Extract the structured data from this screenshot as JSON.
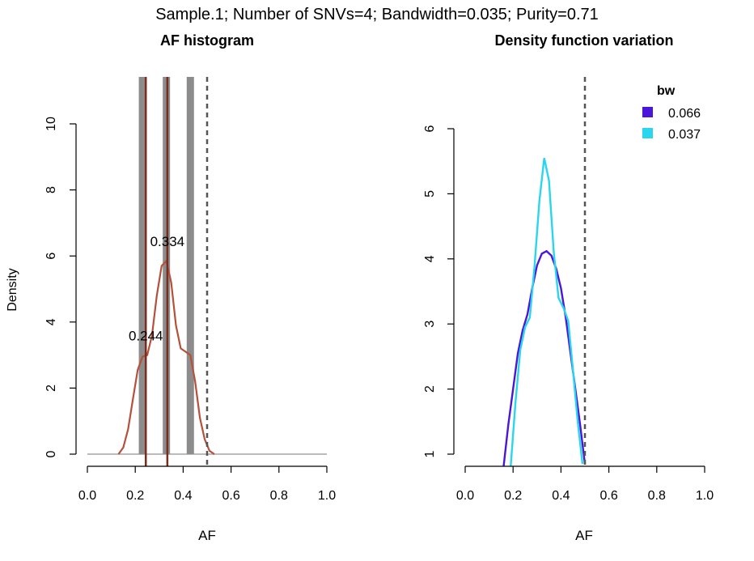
{
  "main_title": "Sample.1; Number of SNVs=4; Bandwidth=0.035; Purity=0.71",
  "colors": {
    "histogram_bar": "#8c8c8c",
    "density_curve": "#b5503a",
    "peak_line": "#7a2c1e",
    "threshold_line": "#555555",
    "bw_0066": "#4a16d9",
    "bw_0037": "#29d6ee",
    "baseline": "#bbbbbb"
  },
  "chart_data": [
    {
      "type": "histogram_density",
      "title": "AF histogram",
      "xlabel": "AF",
      "ylabel": "Density",
      "xlim": [
        0,
        1
      ],
      "ylim": [
        0,
        10
      ],
      "x_ticks": [
        "0.0",
        "0.2",
        "0.4",
        "0.6",
        "0.8",
        "1.0"
      ],
      "y_ticks": [
        "0",
        "2",
        "4",
        "6",
        "8",
        "10"
      ],
      "histogram_bars": [
        {
          "x": 0.23,
          "height": 11.5
        },
        {
          "x": 0.33,
          "height": 11.5
        },
        {
          "x": 0.43,
          "height": 11.5
        }
      ],
      "density_curve": {
        "x": [
          0.13,
          0.15,
          0.17,
          0.19,
          0.21,
          0.23,
          0.25,
          0.27,
          0.29,
          0.31,
          0.33,
          0.35,
          0.37,
          0.39,
          0.41,
          0.43,
          0.45,
          0.47,
          0.49,
          0.51,
          0.53
        ],
        "y": [
          0.0,
          0.2,
          0.75,
          1.65,
          2.55,
          2.95,
          3.0,
          3.6,
          4.8,
          5.7,
          5.85,
          5.2,
          3.9,
          3.2,
          3.1,
          3.0,
          2.2,
          1.1,
          0.45,
          0.1,
          0.0
        ]
      },
      "peak_lines": [
        0.244,
        0.334
      ],
      "peak_labels": [
        {
          "text": "0.244",
          "x": 0.244,
          "y": 3.35
        },
        {
          "text": "0.334",
          "x": 0.334,
          "y": 6.2
        }
      ],
      "threshold_line": 0.5
    },
    {
      "type": "line",
      "title": "Density function variation",
      "xlabel": "AF",
      "ylabel": "",
      "xlim": [
        0,
        1
      ],
      "ylim": [
        1,
        6
      ],
      "x_ticks": [
        "0.0",
        "0.2",
        "0.4",
        "0.6",
        "0.8",
        "1.0"
      ],
      "y_ticks": [
        "1",
        "2",
        "3",
        "4",
        "5",
        "6"
      ],
      "legend_title": "bw",
      "legend_position": "top-right",
      "series": [
        {
          "name": "0.066",
          "x": [
            0.16,
            0.18,
            0.2,
            0.22,
            0.24,
            0.26,
            0.28,
            0.3,
            0.32,
            0.34,
            0.36,
            0.38,
            0.4,
            0.42,
            0.44,
            0.46,
            0.48,
            0.5
          ],
          "y": [
            0.8,
            1.45,
            2.0,
            2.55,
            2.9,
            3.15,
            3.55,
            3.9,
            4.08,
            4.12,
            4.05,
            3.85,
            3.55,
            3.1,
            2.55,
            2.0,
            1.45,
            0.85
          ]
        },
        {
          "name": "0.037",
          "x": [
            0.19,
            0.21,
            0.23,
            0.25,
            0.27,
            0.29,
            0.31,
            0.33,
            0.35,
            0.37,
            0.39,
            0.41,
            0.43,
            0.45,
            0.47,
            0.49
          ],
          "y": [
            0.8,
            1.8,
            2.6,
            2.95,
            3.1,
            3.9,
            4.9,
            5.55,
            5.2,
            4.1,
            3.4,
            3.25,
            3.05,
            2.3,
            1.5,
            0.85
          ]
        }
      ],
      "threshold_line": 0.5
    }
  ]
}
